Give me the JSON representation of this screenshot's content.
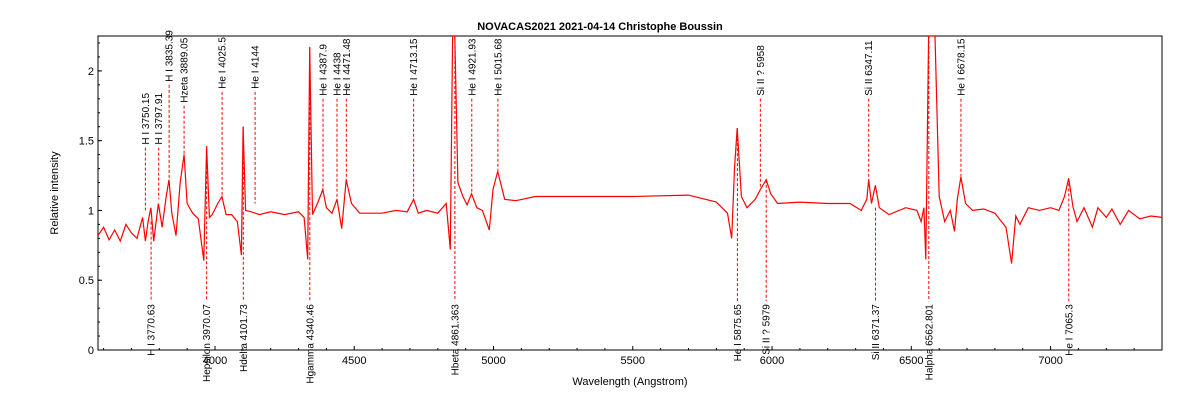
{
  "chart_data": {
    "type": "line",
    "title": "NOVACAS2021   2021-04-14   Christophe Boussin",
    "xlabel": "Wavelength (Angstrom)",
    "ylabel": "Relative intensity",
    "xlim": [
      3580,
      7400
    ],
    "ylim": [
      0,
      2.25
    ],
    "xticks": [
      4000,
      4500,
      5000,
      5500,
      6000,
      6500,
      7000
    ],
    "yticks": [
      0,
      0.5,
      1,
      1.5,
      2
    ],
    "grid": false,
    "colors": {
      "series": "#ff0000",
      "marker_lines": "#ff0000",
      "axes": "#000000"
    },
    "series": [
      {
        "x": [
          3580,
          3600,
          3620,
          3640,
          3660,
          3680,
          3700,
          3720,
          3740,
          3750,
          3760,
          3770,
          3780,
          3797,
          3810,
          3825,
          3835,
          3845,
          3860,
          3875,
          3889,
          3900,
          3920,
          3940,
          3960,
          3970,
          3980,
          3990,
          4010,
          4025,
          4040,
          4060,
          4080,
          4095,
          4101,
          4110,
          4130,
          4160,
          4200,
          4250,
          4300,
          4320,
          4333,
          4340,
          4350,
          4370,
          4387,
          4400,
          4420,
          4438,
          4455,
          4471,
          4490,
          4520,
          4560,
          4600,
          4650,
          4690,
          4713,
          4730,
          4760,
          4800,
          4830,
          4845,
          4853,
          4861,
          4872,
          4890,
          4905,
          4921,
          4940,
          4960,
          4985,
          4998,
          5015,
          5040,
          5080,
          5150,
          5300,
          5500,
          5700,
          5800,
          5840,
          5855,
          5865,
          5875,
          5890,
          5910,
          5940,
          5958,
          5979,
          5995,
          6020,
          6100,
          6200,
          6280,
          6320,
          6340,
          6347,
          6357,
          6371,
          6385,
          6420,
          6480,
          6520,
          6535,
          6545,
          6552,
          6562,
          6572,
          6585,
          6600,
          6620,
          6640,
          6655,
          6665,
          6678,
          6695,
          6720,
          6760,
          6800,
          6840,
          6860,
          6875,
          6890,
          6920,
          6960,
          7000,
          7030,
          7050,
          7065,
          7080,
          7095,
          7120,
          7150,
          7170,
          7200,
          7220,
          7250,
          7280,
          7320,
          7360,
          7400
        ],
        "values": [
          0.82,
          0.88,
          0.79,
          0.86,
          0.78,
          0.9,
          0.84,
          0.8,
          0.95,
          0.78,
          0.92,
          1.02,
          0.78,
          1.05,
          0.88,
          1.1,
          1.22,
          0.98,
          0.82,
          1.2,
          1.4,
          1.05,
          0.98,
          0.94,
          0.64,
          1.46,
          0.95,
          0.97,
          1.05,
          1.1,
          0.97,
          0.97,
          0.92,
          0.68,
          1.6,
          1.0,
          0.99,
          0.97,
          0.99,
          0.97,
          0.99,
          0.95,
          0.65,
          2.17,
          0.97,
          1.06,
          1.15,
          1.02,
          0.98,
          1.08,
          0.87,
          1.22,
          1.05,
          0.98,
          0.98,
          0.98,
          1.0,
          0.99,
          1.08,
          0.98,
          1.0,
          0.98,
          1.05,
          0.72,
          2.25,
          2.25,
          1.2,
          1.1,
          1.04,
          1.12,
          1.02,
          1.0,
          0.86,
          1.15,
          1.28,
          1.08,
          1.07,
          1.1,
          1.1,
          1.1,
          1.11,
          1.06,
          0.98,
          0.8,
          1.3,
          1.59,
          1.1,
          1.02,
          1.08,
          1.15,
          1.22,
          1.12,
          1.05,
          1.06,
          1.05,
          1.05,
          1.0,
          1.08,
          1.22,
          1.05,
          1.18,
          1.02,
          0.97,
          1.02,
          1.0,
          0.92,
          1.02,
          0.65,
          2.25,
          2.25,
          2.25,
          1.1,
          0.92,
          1.0,
          0.85,
          1.08,
          1.24,
          1.05,
          1.0,
          1.01,
          0.98,
          0.88,
          0.62,
          0.96,
          0.9,
          1.02,
          1.0,
          1.02,
          1.0,
          1.1,
          1.23,
          1.03,
          0.92,
          1.02,
          0.88,
          1.02,
          0.95,
          1.01,
          0.9,
          1.0,
          0.94,
          0.96,
          0.95
        ]
      }
    ],
    "line_ids_top": [
      {
        "wavelength": 3750.15,
        "label": "H I 3750.15",
        "y_from": 1.0,
        "y_to": 1.45
      },
      {
        "wavelength": 3797.91,
        "label": "H I 3797.91",
        "y_from": 1.08,
        "y_to": 1.45
      },
      {
        "wavelength": 3835.39,
        "label": "H I 3835.39",
        "y_from": 1.22,
        "y_to": 1.9
      },
      {
        "wavelength": 3889.05,
        "label": "Hzeta 3889.05",
        "y_from": 1.4,
        "y_to": 1.75
      },
      {
        "wavelength": 4025.5,
        "label": "He I 4025.5",
        "y_from": 1.1,
        "y_to": 1.85
      },
      {
        "wavelength": 4144,
        "label": "He I 4144",
        "y_from": 1.05,
        "y_to": 1.85
      },
      {
        "wavelength": 4387.9,
        "label": "He I 4387.9",
        "y_from": 1.15,
        "y_to": 1.8
      },
      {
        "wavelength": 4438,
        "label": "He I 4438",
        "y_from": 1.08,
        "y_to": 1.8
      },
      {
        "wavelength": 4471.48,
        "label": "He I 4471.48",
        "y_from": 1.22,
        "y_to": 1.8
      },
      {
        "wavelength": 4713.15,
        "label": "He I 4713.15",
        "y_from": 1.08,
        "y_to": 1.8
      },
      {
        "wavelength": 4921.93,
        "label": "He I 4921.93",
        "y_from": 1.12,
        "y_to": 1.8
      },
      {
        "wavelength": 5015.68,
        "label": "He I 5015.68",
        "y_from": 1.28,
        "y_to": 1.8
      },
      {
        "wavelength": 5958,
        "label": "Si II ? 5958",
        "y_from": 1.15,
        "y_to": 1.8
      },
      {
        "wavelength": 6347.11,
        "label": "Si II 6347.11",
        "y_from": 1.22,
        "y_to": 1.8
      },
      {
        "wavelength": 6678.15,
        "label": "He I 6678.15",
        "y_from": 1.24,
        "y_to": 1.8
      }
    ],
    "line_ids_bottom": [
      {
        "wavelength": 3770.63,
        "label": "H I 3770.63",
        "y_from": 0.92,
        "y_to": 0.35
      },
      {
        "wavelength": 3970.07,
        "label": "Hepsilon 3970.07",
        "y_from": 1.46,
        "y_to": 0.35
      },
      {
        "wavelength": 4101.73,
        "label": "Hdelta 4101.73",
        "y_from": 1.6,
        "y_to": 0.35
      },
      {
        "wavelength": 4340.46,
        "label": "Hgamma 4340.46",
        "y_from": 2.17,
        "y_to": 0.35
      },
      {
        "wavelength": 4861.363,
        "label": "Hbeta 4861.363",
        "y_from": 2.25,
        "y_to": 0.35
      },
      {
        "wavelength": 5875.65,
        "label": "He I 5875.65",
        "y_from": 1.59,
        "y_to": 0.35
      },
      {
        "wavelength": 5979,
        "label": "Si II ? 5979",
        "y_from": 1.22,
        "y_to": 0.35
      },
      {
        "wavelength": 6371.37,
        "label": "Si II 6371.37",
        "y_from": 1.02,
        "y_to": 0.35
      },
      {
        "wavelength": 6562.801,
        "label": "Halpha 6562.801",
        "y_from": 2.25,
        "y_to": 0.35
      },
      {
        "wavelength": 7065.3,
        "label": "He I 7065.3",
        "y_from": 1.23,
        "y_to": 0.35
      }
    ]
  }
}
